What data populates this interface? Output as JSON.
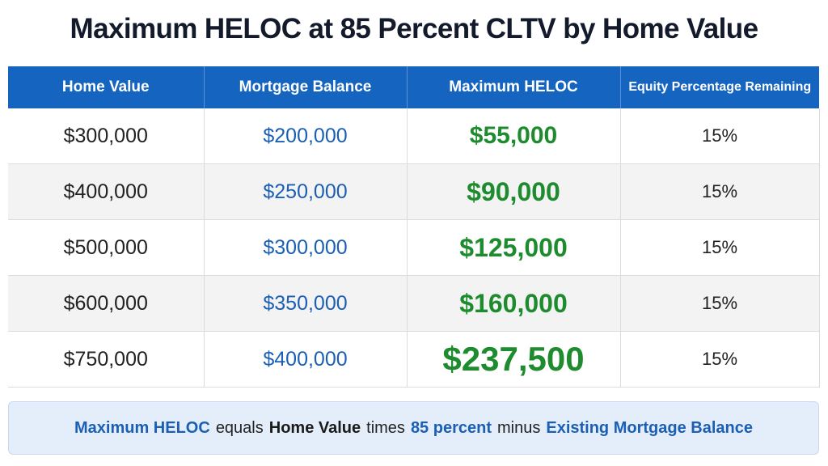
{
  "title": "Maximum HELOC at 85 Percent CLTV by Home Value",
  "table": {
    "headers": [
      "Home Value",
      "Mortgage Balance",
      "Maximum HELOC",
      "Equity Percentage Remaining"
    ],
    "rows": [
      [
        "$300,000",
        "$200,000",
        "$55,000",
        "15%"
      ],
      [
        "$400,000",
        "$250,000",
        "$90,000",
        "15%"
      ],
      [
        "$500,000",
        "$300,000",
        "$125,000",
        "15%"
      ],
      [
        "$600,000",
        "$350,000",
        "$160,000",
        "15%"
      ],
      [
        "$750,000",
        "$400,000",
        "$237,500",
        "15%"
      ]
    ]
  },
  "footer": {
    "parts": [
      "Maximum HELOC",
      "equals",
      "Home Value",
      "times",
      "85 percent",
      "minus",
      "Existing Mortgage Balance"
    ]
  }
}
